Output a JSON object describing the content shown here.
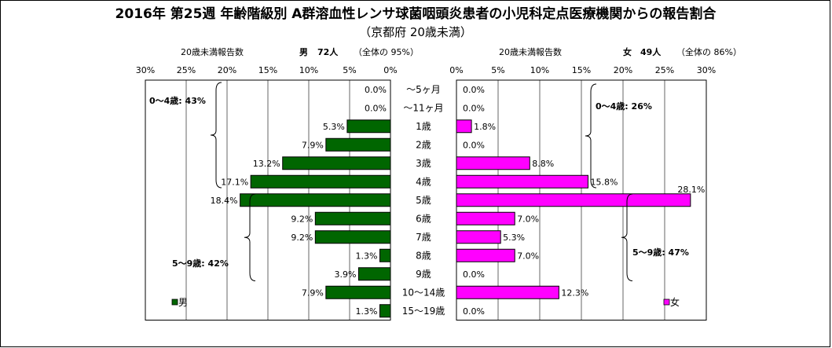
{
  "title": "2016年 第25週 年齢階級別 A群溶血性レンサ球菌咽頭炎患者の小児科定点医療機関からの報告割合",
  "subtitle": "（京都府 20歳未満）",
  "colors": {
    "male": "#006600",
    "female": "#ff00ff",
    "frame": "#000000"
  },
  "chart_data": [
    {
      "type": "bar",
      "orientation": "horizontal",
      "side": "left",
      "header": {
        "count_label": "20歳未満報告数",
        "sex_label": "男",
        "count": "72人",
        "share": "（全体の 95%）"
      },
      "legend": "男",
      "categories": [
        "～5ヶ月",
        "～11ヶ月",
        "1歳",
        "2歳",
        "3歳",
        "4歳",
        "5歳",
        "6歳",
        "7歳",
        "8歳",
        "9歳",
        "10～14歳",
        "15～19歳"
      ],
      "values": [
        0.0,
        0.0,
        5.3,
        7.9,
        13.2,
        17.1,
        18.4,
        9.2,
        9.2,
        1.3,
        3.9,
        7.9,
        1.3
      ],
      "value_labels": [
        "0.0%",
        "0.0%",
        "5.3%",
        "7.9%",
        "13.2%",
        "17.1%",
        "18.4%",
        "9.2%",
        "9.2%",
        "1.3%",
        "3.9%",
        "7.9%",
        "1.3%"
      ],
      "xlim": [
        0,
        30
      ],
      "xticks": [
        "30%",
        "25%",
        "20%",
        "15%",
        "10%",
        "5%",
        "0%"
      ],
      "grid": true,
      "brackets": [
        {
          "label": "0～4歳: 43%",
          "range": [
            "～5ヶ月",
            "4歳"
          ]
        },
        {
          "label": "5～9歳: 42%",
          "range": [
            "5歳",
            "9歳"
          ]
        }
      ]
    },
    {
      "type": "bar",
      "orientation": "horizontal",
      "side": "right",
      "header": {
        "count_label": "20歳未満報告数",
        "sex_label": "女",
        "count": "49人",
        "share": "（全体の 86%）"
      },
      "legend": "女",
      "categories": [
        "～5ヶ月",
        "～11ヶ月",
        "1歳",
        "2歳",
        "3歳",
        "4歳",
        "5歳",
        "6歳",
        "7歳",
        "8歳",
        "9歳",
        "10～14歳",
        "15～19歳"
      ],
      "values": [
        0.0,
        0.0,
        1.8,
        0.0,
        8.8,
        15.8,
        28.1,
        7.0,
        5.3,
        7.0,
        0.0,
        12.3,
        0.0
      ],
      "value_labels": [
        "0.0%",
        "0.0%",
        "1.8%",
        "0.0%",
        "8.8%",
        "15.8%",
        "28.1%",
        "7.0%",
        "5.3%",
        "7.0%",
        "0.0%",
        "12.3%",
        "0.0%"
      ],
      "xlim": [
        0,
        30
      ],
      "xticks": [
        "0%",
        "5%",
        "10%",
        "15%",
        "20%",
        "25%",
        "30%"
      ],
      "grid": true,
      "brackets": [
        {
          "label": "0～4歳: 26%",
          "range": [
            "～5ヶ月",
            "4歳"
          ]
        },
        {
          "label": "5～9歳: 47%",
          "range": [
            "5歳",
            "9歳"
          ]
        }
      ]
    }
  ]
}
